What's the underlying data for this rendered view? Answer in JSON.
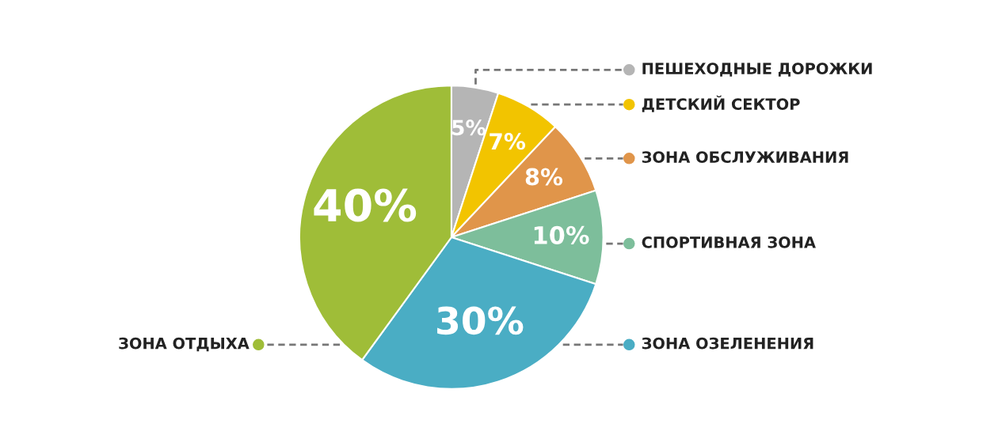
{
  "chart_data": {
    "type": "pie",
    "legend": "right",
    "categories": [
      "ПЕШЕХОДНЫЕ ДОРОЖКИ",
      "ДЕТСКИЙ СЕКТОР",
      "ЗОНА ОБСЛУЖИВАНИЯ",
      "СПОРТИВНАЯ ЗОНА",
      "ЗОНА ОЗЕЛЕНЕНИЯ",
      "ЗОНА ОТДЫХА"
    ],
    "values": [
      5,
      7,
      8,
      10,
      30,
      40
    ],
    "value_labels": [
      "5%",
      "7%",
      "8%",
      "10%",
      "30%",
      "40%"
    ],
    "colors": [
      "#b5b5b5",
      "#f2c400",
      "#e0954a",
      "#7dbe9b",
      "#4aadc4",
      "#9fbd38"
    ]
  }
}
